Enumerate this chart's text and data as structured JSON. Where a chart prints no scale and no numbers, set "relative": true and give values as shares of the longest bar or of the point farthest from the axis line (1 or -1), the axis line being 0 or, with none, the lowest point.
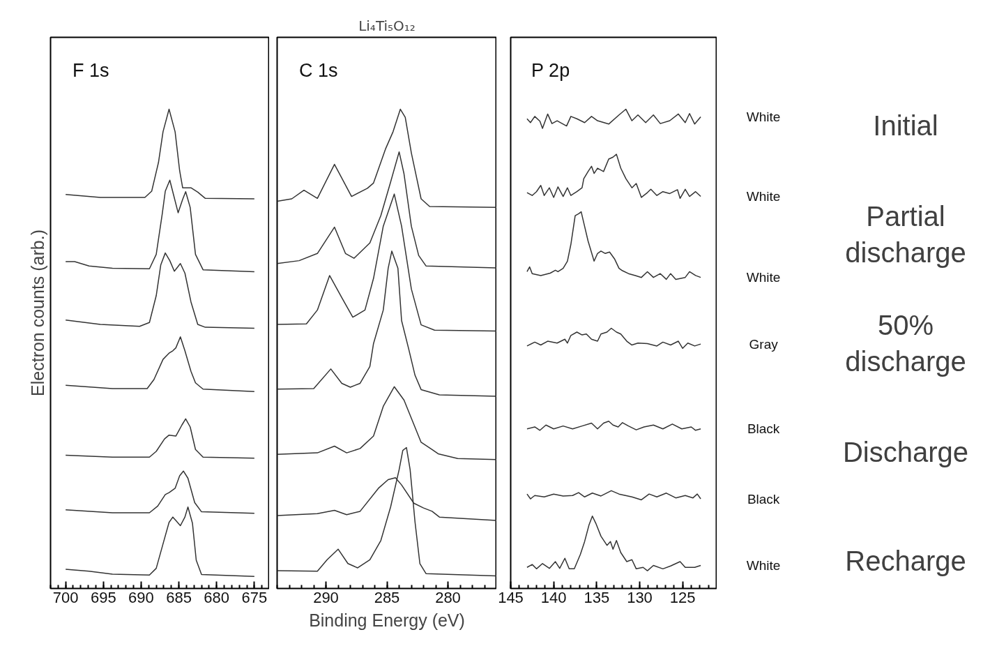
{
  "chart_data": [
    {
      "type": "line",
      "relative": true,
      "ylabel": "Electron counts (arb.)",
      "annotations": [
        "F 1s"
      ],
      "xlim": [
        702,
        673
      ],
      "xticks": [
        700,
        695,
        690,
        685,
        680,
        675
      ],
      "series": [
        {
          "color": "#333333",
          "x": [
            700,
            695.4,
            689.5,
            688.6,
            687.7,
            687.1,
            686.3,
            685.5,
            684.9,
            684.5,
            683.4,
            682.5,
            681.5,
            675
          ],
          "values": [
            0.822,
            0.816,
            0.816,
            0.829,
            0.889,
            0.953,
            1.0,
            0.953,
            0.872,
            0.836,
            0.836,
            0.827,
            0.814,
            0.813
          ]
        },
        {
          "color": "#333333",
          "x": [
            700,
            698.8,
            696.9,
            693.8,
            688.9,
            688,
            687.2,
            686.8,
            686.2,
            685.7,
            685.1,
            684.5,
            684.1,
            683.5,
            682.8,
            681.8,
            675
          ],
          "values": [
            0.682,
            0.682,
            0.673,
            0.668,
            0.667,
            0.697,
            0.782,
            0.829,
            0.852,
            0.821,
            0.784,
            0.812,
            0.828,
            0.795,
            0.697,
            0.665,
            0.661
          ]
        },
        {
          "color": "#333333",
          "x": [
            700,
            695.4,
            690.2,
            688.9,
            688,
            687.4,
            686.8,
            686.2,
            685.6,
            684.8,
            684.2,
            683.4,
            682.5,
            681.5,
            675
          ],
          "values": [
            0.56,
            0.551,
            0.547,
            0.555,
            0.611,
            0.675,
            0.7,
            0.684,
            0.662,
            0.678,
            0.658,
            0.598,
            0.551,
            0.545,
            0.543
          ]
        },
        {
          "color": "#333333",
          "x": [
            700,
            693.8,
            689.2,
            688.3,
            687.1,
            686.3,
            685.8,
            685.4,
            684.8,
            684.2,
            683.4,
            682.8,
            681.8,
            675
          ],
          "values": [
            0.424,
            0.417,
            0.417,
            0.436,
            0.478,
            0.491,
            0.496,
            0.502,
            0.525,
            0.496,
            0.453,
            0.429,
            0.416,
            0.411
          ]
        },
        {
          "color": "#333333",
          "x": [
            700,
            693.8,
            688.9,
            688,
            686.9,
            686.3,
            685.4,
            684.6,
            684.1,
            683.5,
            682.8,
            681.8,
            675
          ],
          "values": [
            0.278,
            0.274,
            0.274,
            0.286,
            0.312,
            0.32,
            0.318,
            0.341,
            0.354,
            0.337,
            0.29,
            0.274,
            0.272
          ]
        },
        {
          "color": "#333333",
          "x": [
            700,
            693.8,
            688.9,
            687.8,
            686.8,
            686.3,
            685.5,
            684.9,
            684.4,
            683.8,
            682.9,
            682,
            675
          ],
          "values": [
            0.164,
            0.158,
            0.158,
            0.172,
            0.196,
            0.2,
            0.209,
            0.235,
            0.245,
            0.23,
            0.179,
            0.16,
            0.157
          ]
        },
        {
          "color": "#333333",
          "x": [
            700,
            696.9,
            693.8,
            688.9,
            688,
            687.1,
            686.3,
            685.8,
            685.3,
            684.8,
            684.2,
            683.8,
            683.2,
            682.7,
            682,
            675
          ],
          "values": [
            0.04,
            0.036,
            0.03,
            0.028,
            0.042,
            0.093,
            0.138,
            0.149,
            0.14,
            0.131,
            0.149,
            0.17,
            0.136,
            0.059,
            0.029,
            0.025
          ]
        }
      ]
    },
    {
      "type": "line",
      "relative": true,
      "title": "Li₄Ti₅O₁₂",
      "xlabel": "Binding Energy (eV)",
      "annotations": [
        "C 1s"
      ],
      "xlim": [
        294,
        276
      ],
      "xticks": [
        290,
        285,
        280
      ],
      "series": [
        {
          "color": "#333333",
          "x": [
            294.0,
            292.8,
            291.8,
            290.7,
            289.3,
            287.9,
            286.6,
            286.1,
            285.1,
            284.5,
            283.9,
            283.5,
            283.0,
            282.2,
            281.5,
            276.0
          ],
          "values": [
            0.808,
            0.813,
            0.831,
            0.814,
            0.885,
            0.818,
            0.835,
            0.846,
            0.918,
            0.953,
            1.0,
            0.983,
            0.909,
            0.813,
            0.797,
            0.795
          ]
        },
        {
          "color": "#333333",
          "x": [
            294.0,
            292.2,
            290.7,
            289.3,
            288.4,
            287.7,
            286.4,
            285.5,
            284.7,
            284.0,
            283.6,
            283.0,
            282.4,
            281.8,
            276.0
          ],
          "values": [
            0.678,
            0.684,
            0.699,
            0.754,
            0.699,
            0.689,
            0.721,
            0.778,
            0.848,
            0.911,
            0.865,
            0.756,
            0.695,
            0.673,
            0.669
          ]
        },
        {
          "color": "#333333",
          "x": [
            294.0,
            291.6,
            290.7,
            289.7,
            288.7,
            287.8,
            286.8,
            286.1,
            285.3,
            284.4,
            283.8,
            283.0,
            282.2,
            281.1,
            276.0
          ],
          "values": [
            0.551,
            0.552,
            0.581,
            0.653,
            0.607,
            0.566,
            0.581,
            0.647,
            0.756,
            0.823,
            0.756,
            0.625,
            0.55,
            0.539,
            0.537
          ]
        },
        {
          "color": "#333333",
          "x": [
            294.0,
            291.0,
            289.6,
            288.7,
            288.0,
            287.2,
            286.4,
            286.1,
            285.3,
            284.9,
            284.6,
            284.1,
            283.8,
            283.2,
            282.7,
            282.2,
            280.7,
            276.0
          ],
          "values": [
            0.416,
            0.417,
            0.458,
            0.428,
            0.42,
            0.428,
            0.463,
            0.511,
            0.581,
            0.668,
            0.704,
            0.668,
            0.559,
            0.498,
            0.445,
            0.415,
            0.404,
            0.401
          ]
        },
        {
          "color": "#333333",
          "x": [
            294.0,
            290.7,
            289.3,
            288.3,
            287.2,
            286.1,
            285.3,
            284.4,
            283.6,
            282.9,
            282.2,
            281.3,
            280.8,
            279.2,
            276.0
          ],
          "values": [
            0.28,
            0.283,
            0.297,
            0.283,
            0.292,
            0.318,
            0.38,
            0.421,
            0.393,
            0.349,
            0.305,
            0.29,
            0.281,
            0.271,
            0.269
          ]
        },
        {
          "color": "#333333",
          "x": [
            294.0,
            290.7,
            289.3,
            288.3,
            287.2,
            285.7,
            284.9,
            284.3,
            283.8,
            282.8,
            282.0,
            281.3,
            280.7,
            276.0
          ],
          "values": [
            0.152,
            0.156,
            0.163,
            0.154,
            0.161,
            0.209,
            0.227,
            0.231,
            0.216,
            0.178,
            0.168,
            0.161,
            0.149,
            0.142
          ]
        },
        {
          "color": "#333333",
          "x": [
            294.0,
            290.7,
            289.9,
            289.0,
            288.2,
            287.4,
            286.4,
            285.5,
            284.7,
            284.0,
            283.7,
            283.4,
            283.1,
            282.7,
            282.3,
            281.8,
            276.0
          ],
          "values": [
            0.037,
            0.036,
            0.06,
            0.082,
            0.052,
            0.043,
            0.06,
            0.1,
            0.17,
            0.248,
            0.288,
            0.294,
            0.248,
            0.139,
            0.052,
            0.031,
            0.026
          ]
        }
      ]
    },
    {
      "type": "line",
      "relative": true,
      "annotations": [
        "P 2p",
        "Initial",
        "Partial discharge",
        "50% discharge",
        "Discharge",
        "Recharge"
      ],
      "xlim": [
        145,
        121
      ],
      "xticks": [
        145,
        140,
        135,
        130,
        125
      ],
      "series": [
        {
          "name": "White",
          "color": "#333333",
          "x": [
            143.1,
            142.7,
            142.2,
            141.6,
            141.3,
            140.7,
            140.2,
            139.6,
            138.5,
            138.0,
            137.3,
            136.4,
            135.6,
            134.9,
            133.6,
            132.4,
            131.6,
            130.9,
            130.2,
            129.3,
            128.4,
            127.6,
            126.5,
            125.5,
            124.7,
            124.2,
            123.6,
            122.9
          ],
          "values": [
            0.98,
            0.972,
            0.985,
            0.975,
            0.96,
            0.99,
            0.97,
            0.976,
            0.965,
            0.985,
            0.98,
            0.972,
            0.985,
            0.976,
            0.969,
            0.988,
            1.0,
            0.976,
            0.988,
            0.972,
            0.988,
            0.97,
            0.976,
            0.99,
            0.972,
            0.991,
            0.969,
            0.984
          ]
        },
        {
          "name": "White",
          "color": "#333333",
          "x": [
            143.1,
            142.5,
            142.0,
            141.5,
            141.1,
            140.5,
            140.0,
            139.5,
            138.9,
            138.4,
            138.0,
            137.3,
            136.7,
            136.5,
            136.0,
            135.6,
            135.3,
            134.9,
            134.2,
            133.6,
            133.1,
            132.7,
            132.2,
            131.6,
            130.9,
            130.4,
            129.8,
            129.1,
            128.7,
            128.0,
            127.3,
            126.5,
            125.6,
            125.3,
            124.7,
            124.2,
            123.5,
            122.9
          ],
          "values": [
            0.826,
            0.82,
            0.828,
            0.841,
            0.82,
            0.836,
            0.816,
            0.838,
            0.818,
            0.836,
            0.82,
            0.828,
            0.836,
            0.855,
            0.87,
            0.881,
            0.866,
            0.877,
            0.87,
            0.896,
            0.9,
            0.906,
            0.877,
            0.855,
            0.836,
            0.845,
            0.816,
            0.826,
            0.833,
            0.82,
            0.828,
            0.824,
            0.832,
            0.814,
            0.833,
            0.818,
            0.828,
            0.818
          ]
        },
        {
          "name": "White",
          "color": "#333333",
          "x": [
            143.1,
            142.8,
            142.5,
            141.5,
            140.4,
            139.8,
            139.5,
            138.9,
            138.4,
            138.0,
            137.5,
            137.1,
            136.8,
            136.5,
            136.0,
            135.3,
            134.9,
            134.5,
            134.0,
            133.5,
            132.9,
            132.4,
            132.0,
            131.3,
            130.5,
            129.8,
            129.1,
            128.4,
            127.6,
            126.9,
            126.4,
            125.8,
            124.7,
            124.2,
            123.5,
            122.9
          ],
          "values": [
            0.661,
            0.671,
            0.657,
            0.653,
            0.658,
            0.664,
            0.661,
            0.668,
            0.683,
            0.718,
            0.778,
            0.782,
            0.786,
            0.763,
            0.725,
            0.683,
            0.699,
            0.704,
            0.699,
            0.702,
            0.687,
            0.668,
            0.663,
            0.657,
            0.653,
            0.649,
            0.661,
            0.649,
            0.657,
            0.645,
            0.657,
            0.645,
            0.649,
            0.661,
            0.653,
            0.649
          ]
        },
        {
          "name": "Gray",
          "color": "#333333",
          "x": [
            143.1,
            142.2,
            141.5,
            140.7,
            139.6,
            138.7,
            138.4,
            138.0,
            137.3,
            136.7,
            136.2,
            135.6,
            134.9,
            134.5,
            133.8,
            133.3,
            132.7,
            132.2,
            131.5,
            130.9,
            130.2,
            129.1,
            128.0,
            127.3,
            126.4,
            125.5,
            125.0,
            124.4,
            123.6,
            122.9
          ],
          "values": [
            0.506,
            0.514,
            0.508,
            0.516,
            0.512,
            0.52,
            0.512,
            0.528,
            0.535,
            0.529,
            0.531,
            0.52,
            0.516,
            0.531,
            0.535,
            0.543,
            0.535,
            0.531,
            0.516,
            0.508,
            0.512,
            0.511,
            0.506,
            0.514,
            0.508,
            0.516,
            0.501,
            0.512,
            0.506,
            0.51
          ]
        },
        {
          "name": "Black",
          "color": "#333333",
          "x": [
            143.1,
            142.2,
            141.6,
            140.9,
            140.0,
            138.9,
            137.8,
            136.7,
            135.6,
            134.9,
            134.2,
            133.6,
            133.1,
            132.5,
            132.0,
            131.3,
            130.4,
            129.5,
            128.4,
            127.3,
            126.2,
            125.1,
            124.0,
            123.5,
            122.9
          ],
          "values": [
            0.333,
            0.337,
            0.33,
            0.341,
            0.333,
            0.339,
            0.333,
            0.339,
            0.345,
            0.333,
            0.345,
            0.349,
            0.341,
            0.337,
            0.346,
            0.339,
            0.331,
            0.337,
            0.341,
            0.333,
            0.343,
            0.333,
            0.337,
            0.33,
            0.333
          ]
        },
        {
          "name": "Black",
          "color": "#333333",
          "x": [
            143.1,
            142.7,
            142.2,
            141.1,
            140.0,
            138.9,
            137.8,
            137.1,
            136.4,
            135.5,
            134.5,
            133.3,
            132.4,
            130.9,
            129.8,
            128.9,
            128.0,
            126.9,
            125.8,
            124.7,
            123.8,
            123.3,
            122.9
          ],
          "values": [
            0.197,
            0.187,
            0.194,
            0.191,
            0.197,
            0.193,
            0.194,
            0.2,
            0.191,
            0.199,
            0.193,
            0.204,
            0.197,
            0.191,
            0.185,
            0.197,
            0.191,
            0.199,
            0.189,
            0.194,
            0.189,
            0.197,
            0.187
          ]
        },
        {
          "name": "White",
          "color": "#333333",
          "x": [
            143.1,
            142.5,
            142.0,
            141.3,
            140.5,
            139.8,
            139.3,
            138.7,
            138.2,
            137.6,
            136.9,
            136.4,
            135.9,
            135.5,
            135.1,
            134.5,
            133.8,
            133.4,
            133.1,
            132.7,
            132.2,
            131.5,
            130.9,
            130.4,
            129.6,
            129.1,
            128.4,
            127.3,
            126.4,
            125.3,
            124.7,
            123.6,
            122.9
          ],
          "values": [
            0.044,
            0.05,
            0.041,
            0.052,
            0.042,
            0.056,
            0.042,
            0.063,
            0.041,
            0.041,
            0.071,
            0.098,
            0.132,
            0.151,
            0.136,
            0.109,
            0.09,
            0.098,
            0.082,
            0.1,
            0.075,
            0.056,
            0.06,
            0.041,
            0.044,
            0.037,
            0.048,
            0.041,
            0.047,
            0.056,
            0.044,
            0.044,
            0.048
          ]
        }
      ]
    }
  ]
}
